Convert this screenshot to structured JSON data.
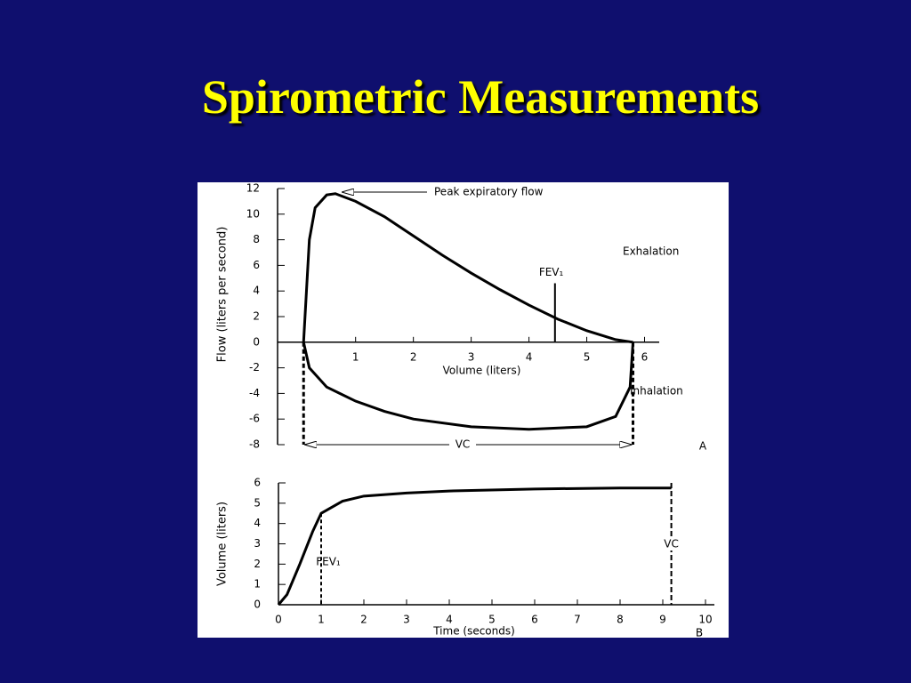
{
  "slide": {
    "title": "Spirometric Measurements"
  },
  "chart_data": [
    {
      "type": "line",
      "panel": "A",
      "x_label": "Volume (liters)",
      "y_label": "Flow (liters per second)",
      "xlim": [
        -0.35,
        6.1
      ],
      "ylim": [
        -8,
        12
      ],
      "xticks": [
        1,
        2,
        3,
        4,
        5,
        6
      ],
      "yticks": [
        -8,
        -6,
        -4,
        -2,
        0,
        2,
        4,
        6,
        8,
        10,
        12
      ],
      "series": [
        {
          "name": "Exhalation",
          "color": "#000000",
          "x": [
            0.1,
            0.15,
            0.2,
            0.3,
            0.5,
            0.65,
            1,
            1.5,
            2,
            2.5,
            3,
            3.5,
            4,
            4.5,
            5,
            5.5,
            5.8
          ],
          "values": [
            0,
            4,
            8,
            10.5,
            11.5,
            11.6,
            11,
            9.8,
            8.3,
            6.8,
            5.4,
            4.1,
            2.9,
            1.8,
            0.9,
            0.2,
            0
          ]
        },
        {
          "name": "Inhalation",
          "color": "#000000",
          "x": [
            0.1,
            0.2,
            0.5,
            1,
            1.5,
            2,
            3,
            4,
            5,
            5.5,
            5.75,
            5.8
          ],
          "values": [
            0,
            -2,
            -3.5,
            -4.6,
            -5.4,
            -6,
            -6.6,
            -6.8,
            -6.6,
            -5.8,
            -3.5,
            0
          ]
        }
      ],
      "peak_label": "Peak expiratory flow",
      "fev1": {
        "label": "FEV₁",
        "x": 4.45
      },
      "vc_label": "VC"
    },
    {
      "type": "line",
      "panel": "B",
      "x_label": "Time (seconds)",
      "y_label": "Volume (liters)",
      "xlim": [
        0,
        10
      ],
      "ylim": [
        0,
        6
      ],
      "xticks": [
        0,
        1,
        2,
        3,
        4,
        5,
        6,
        7,
        8,
        9,
        10
      ],
      "yticks": [
        0,
        1,
        2,
        3,
        4,
        5,
        6
      ],
      "series": [
        {
          "color": "#000000",
          "x": [
            0,
            0.2,
            0.5,
            0.8,
            1,
            1.5,
            2,
            3,
            4,
            6,
            8,
            9.2
          ],
          "values": [
            0,
            0.5,
            2,
            3.6,
            4.5,
            5.1,
            5.35,
            5.5,
            5.6,
            5.7,
            5.75,
            5.75
          ]
        }
      ],
      "fev1": {
        "label": "FEV₁",
        "x": 1
      },
      "vc": {
        "label": "VC",
        "x": 9.2
      }
    }
  ]
}
